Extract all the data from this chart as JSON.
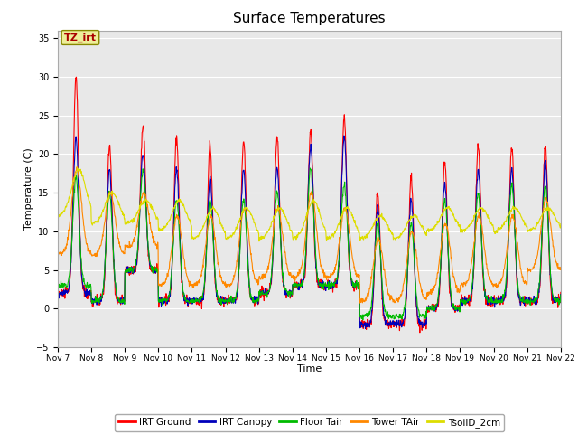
{
  "title": "Surface Temperatures",
  "xlabel": "Time",
  "ylabel": "Temperature (C)",
  "ylim": [
    -5,
    36
  ],
  "yticks": [
    -5,
    0,
    5,
    10,
    15,
    20,
    25,
    30,
    35
  ],
  "background_color": "#e8e8e8",
  "series_colors": {
    "IRT Ground": "#ff0000",
    "IRT Canopy": "#0000bb",
    "Floor Tair": "#00bb00",
    "Tower TAir": "#ff8800",
    "TsoilD_2cm": "#dddd00"
  },
  "x_tick_labels": [
    "Nov 7",
    "Nov 8",
    "Nov 9",
    "Nov 10",
    "Nov 11",
    "Nov 12",
    "Nov 13",
    "Nov 14",
    "Nov 15",
    "Nov 16",
    "Nov 17",
    "Nov 18",
    "Nov 19",
    "Nov 20",
    "Nov 21",
    "Nov 22"
  ],
  "annotation_text": "TZ_irt",
  "annotation_box_facecolor": "#eeee99",
  "annotation_box_edge": "#888800",
  "annotation_text_color": "#aa0000"
}
